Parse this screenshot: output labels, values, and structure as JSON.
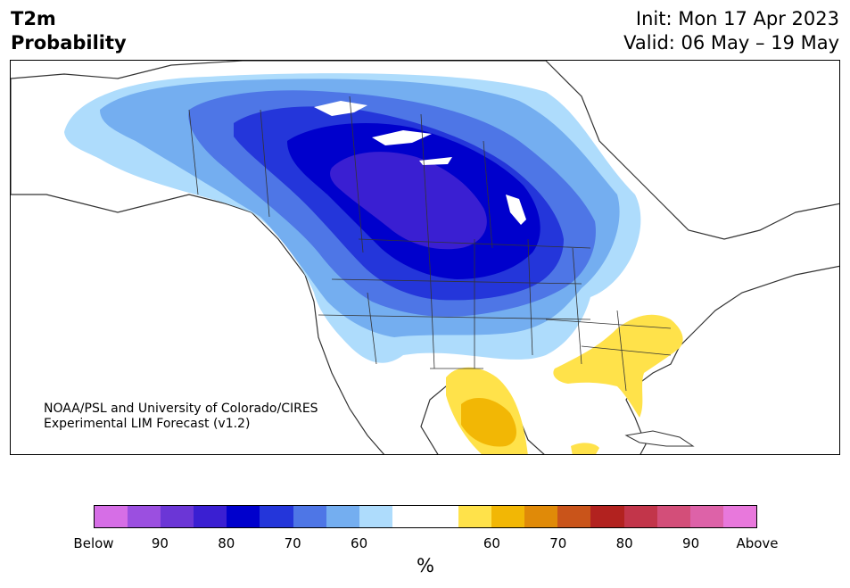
{
  "title": {
    "left_line1": "T2m",
    "left_line2": "Probability",
    "init": "Init: Mon 17 Apr 2023",
    "valid": "Valid: 06 May – 19 May"
  },
  "credit": {
    "line1": "NOAA/PSL and University of Colorado/CIRES",
    "line2": "Experimental LIM Forecast (v1.2)"
  },
  "colorbar": {
    "unit": "%",
    "colors": [
      "#d66ee6",
      "#9b4fe0",
      "#6b36d6",
      "#3a1fd2",
      "#0000cc",
      "#2436da",
      "#4e76e6",
      "#74aef0",
      "#aedcfc",
      "#ffffff",
      "#ffffff",
      "#ffe24a",
      "#f2b705",
      "#e08a08",
      "#c9541a",
      "#b2221f",
      "#c2354a",
      "#d34e79",
      "#dd62a8",
      "#e878dc"
    ],
    "ticks": [
      {
        "label": "Below"
      },
      {
        "label": "90"
      },
      {
        "label": "80"
      },
      {
        "label": "70"
      },
      {
        "label": "60"
      },
      {
        "label": "60"
      },
      {
        "label": "70"
      },
      {
        "label": "80"
      },
      {
        "label": "90"
      },
      {
        "label": "Above"
      }
    ]
  },
  "map": {
    "colors": {
      "prob_60_below": "#aedcfc",
      "prob_65_below": "#74aef0",
      "prob_70_below": "#4e76e6",
      "prob_75_below": "#2436da",
      "prob_80_below": "#0000cc",
      "prob_85_below": "#3a1fd2",
      "prob_60_above": "#ffe24a",
      "prob_65_above": "#f2b705",
      "coastline": "#333333",
      "ocean": "#ffffff"
    }
  }
}
